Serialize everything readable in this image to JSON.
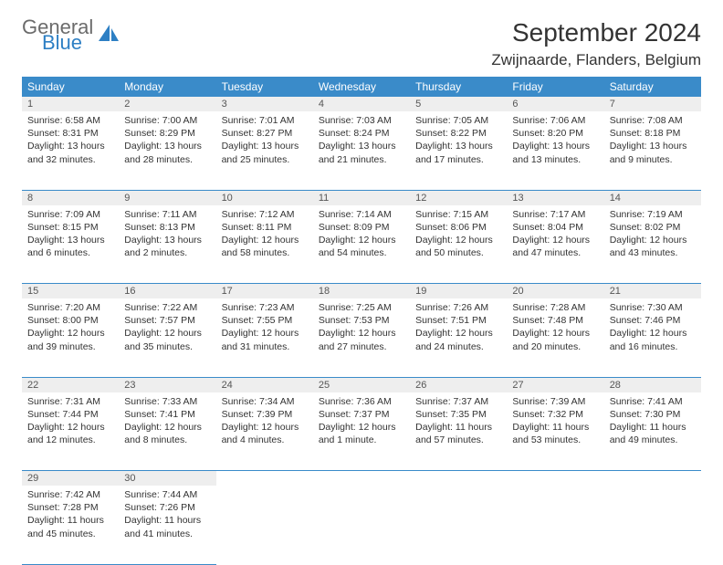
{
  "brand": {
    "part1": "General",
    "part2": "Blue"
  },
  "title": "September 2024",
  "location": "Zwijnaarde, Flanders, Belgium",
  "colors": {
    "header_bg": "#3a8bc9",
    "header_text": "#ffffff",
    "daynum_bg": "#eeeeee",
    "border": "#3a8bc9",
    "text": "#333333",
    "logo_gray": "#6b6b6b",
    "logo_blue": "#2d7fc4"
  },
  "weekdays": [
    "Sunday",
    "Monday",
    "Tuesday",
    "Wednesday",
    "Thursday",
    "Friday",
    "Saturday"
  ],
  "weeks": [
    [
      {
        "n": "1",
        "sunrise": "6:58 AM",
        "sunset": "8:31 PM",
        "day_h": "13",
        "day_m": "32"
      },
      {
        "n": "2",
        "sunrise": "7:00 AM",
        "sunset": "8:29 PM",
        "day_h": "13",
        "day_m": "28"
      },
      {
        "n": "3",
        "sunrise": "7:01 AM",
        "sunset": "8:27 PM",
        "day_h": "13",
        "day_m": "25"
      },
      {
        "n": "4",
        "sunrise": "7:03 AM",
        "sunset": "8:24 PM",
        "day_h": "13",
        "day_m": "21"
      },
      {
        "n": "5",
        "sunrise": "7:05 AM",
        "sunset": "8:22 PM",
        "day_h": "13",
        "day_m": "17"
      },
      {
        "n": "6",
        "sunrise": "7:06 AM",
        "sunset": "8:20 PM",
        "day_h": "13",
        "day_m": "13"
      },
      {
        "n": "7",
        "sunrise": "7:08 AM",
        "sunset": "8:18 PM",
        "day_h": "13",
        "day_m": "9"
      }
    ],
    [
      {
        "n": "8",
        "sunrise": "7:09 AM",
        "sunset": "8:15 PM",
        "day_h": "13",
        "day_m": "6"
      },
      {
        "n": "9",
        "sunrise": "7:11 AM",
        "sunset": "8:13 PM",
        "day_h": "13",
        "day_m": "2"
      },
      {
        "n": "10",
        "sunrise": "7:12 AM",
        "sunset": "8:11 PM",
        "day_h": "12",
        "day_m": "58"
      },
      {
        "n": "11",
        "sunrise": "7:14 AM",
        "sunset": "8:09 PM",
        "day_h": "12",
        "day_m": "54"
      },
      {
        "n": "12",
        "sunrise": "7:15 AM",
        "sunset": "8:06 PM",
        "day_h": "12",
        "day_m": "50"
      },
      {
        "n": "13",
        "sunrise": "7:17 AM",
        "sunset": "8:04 PM",
        "day_h": "12",
        "day_m": "47"
      },
      {
        "n": "14",
        "sunrise": "7:19 AM",
        "sunset": "8:02 PM",
        "day_h": "12",
        "day_m": "43"
      }
    ],
    [
      {
        "n": "15",
        "sunrise": "7:20 AM",
        "sunset": "8:00 PM",
        "day_h": "12",
        "day_m": "39"
      },
      {
        "n": "16",
        "sunrise": "7:22 AM",
        "sunset": "7:57 PM",
        "day_h": "12",
        "day_m": "35"
      },
      {
        "n": "17",
        "sunrise": "7:23 AM",
        "sunset": "7:55 PM",
        "day_h": "12",
        "day_m": "31"
      },
      {
        "n": "18",
        "sunrise": "7:25 AM",
        "sunset": "7:53 PM",
        "day_h": "12",
        "day_m": "27"
      },
      {
        "n": "19",
        "sunrise": "7:26 AM",
        "sunset": "7:51 PM",
        "day_h": "12",
        "day_m": "24"
      },
      {
        "n": "20",
        "sunrise": "7:28 AM",
        "sunset": "7:48 PM",
        "day_h": "12",
        "day_m": "20"
      },
      {
        "n": "21",
        "sunrise": "7:30 AM",
        "sunset": "7:46 PM",
        "day_h": "12",
        "day_m": "16"
      }
    ],
    [
      {
        "n": "22",
        "sunrise": "7:31 AM",
        "sunset": "7:44 PM",
        "day_h": "12",
        "day_m": "12"
      },
      {
        "n": "23",
        "sunrise": "7:33 AM",
        "sunset": "7:41 PM",
        "day_h": "12",
        "day_m": "8"
      },
      {
        "n": "24",
        "sunrise": "7:34 AM",
        "sunset": "7:39 PM",
        "day_h": "12",
        "day_m": "4"
      },
      {
        "n": "25",
        "sunrise": "7:36 AM",
        "sunset": "7:37 PM",
        "day_h": "12",
        "day_m": "1",
        "minute_word": "minute"
      },
      {
        "n": "26",
        "sunrise": "7:37 AM",
        "sunset": "7:35 PM",
        "day_h": "11",
        "day_m": "57"
      },
      {
        "n": "27",
        "sunrise": "7:39 AM",
        "sunset": "7:32 PM",
        "day_h": "11",
        "day_m": "53"
      },
      {
        "n": "28",
        "sunrise": "7:41 AM",
        "sunset": "7:30 PM",
        "day_h": "11",
        "day_m": "49"
      }
    ],
    [
      {
        "n": "29",
        "sunrise": "7:42 AM",
        "sunset": "7:28 PM",
        "day_h": "11",
        "day_m": "45"
      },
      {
        "n": "30",
        "sunrise": "7:44 AM",
        "sunset": "7:26 PM",
        "day_h": "11",
        "day_m": "41"
      },
      null,
      null,
      null,
      null,
      null
    ]
  ],
  "labels": {
    "sunrise": "Sunrise:",
    "sunset": "Sunset:",
    "daylight": "Daylight:",
    "hours": "hours",
    "and": "and",
    "minutes_default": "minutes"
  }
}
